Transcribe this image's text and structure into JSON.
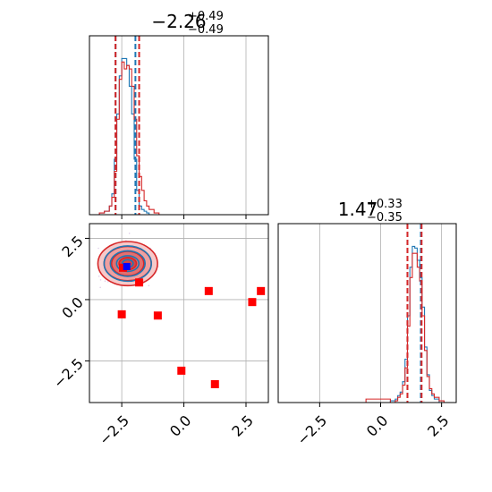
{
  "chart_data": {
    "type": "corner",
    "colors": {
      "series_a": "#1f77b4",
      "series_b": "#d62728",
      "points": "#ff0000",
      "truth": "#0000ff",
      "grid": "#b0b0b0"
    },
    "panels": {
      "hist_x": {
        "type": "histogram",
        "xlim": [
          -3.8,
          3.4
        ],
        "title": {
          "main": "−2.26",
          "sup": "+0.49",
          "sub": "−0.49"
        },
        "quantile_lines": {
          "series_a": [
            -2.75,
            -1.95
          ],
          "series_b": [
            -2.75,
            -1.8
          ]
        },
        "series_a": {
          "x": [
            -3.6,
            -3.4,
            -3.2,
            -3.0,
            -2.9,
            -2.8,
            -2.7,
            -2.6,
            -2.5,
            -2.4,
            -2.3,
            -2.2,
            -2.1,
            -2.0,
            -1.9,
            -1.8,
            -1.7,
            -1.6,
            -1.5,
            -1.4,
            -1.2,
            -1.0
          ],
          "y": [
            0.0,
            0.01,
            0.02,
            0.05,
            0.12,
            0.32,
            0.58,
            0.8,
            0.9,
            0.9,
            0.86,
            0.74,
            0.58,
            0.32,
            0.14,
            0.05,
            0.03,
            0.02,
            0.01,
            0.0,
            0.0,
            0.0
          ]
        },
        "series_b": {
          "x": [
            -3.6,
            -3.4,
            -3.2,
            -3.0,
            -2.9,
            -2.8,
            -2.7,
            -2.6,
            -2.5,
            -2.4,
            -2.3,
            -2.2,
            -2.1,
            -2.0,
            -1.9,
            -1.8,
            -1.7,
            -1.6,
            -1.5,
            -1.4,
            -1.2,
            -1.0,
            0.0,
            3.4
          ],
          "y": [
            0.0,
            0.01,
            0.02,
            0.05,
            0.1,
            0.25,
            0.55,
            0.78,
            0.88,
            0.84,
            0.86,
            0.84,
            0.74,
            0.55,
            0.34,
            0.22,
            0.14,
            0.08,
            0.05,
            0.03,
            0.01,
            0.0,
            0.0,
            0.0
          ]
        }
      },
      "hist_y": {
        "type": "histogram",
        "xlim": [
          -4.2,
          3.1
        ],
        "xticks": [
          -2.5,
          0.0,
          2.5
        ],
        "xtick_labels": [
          "−2.5",
          "0.0",
          "2.5"
        ],
        "title": {
          "main": "1.47",
          "sup": "+0.33",
          "sub": "−0.35"
        },
        "quantile_lines": {
          "series_a": [
            1.1,
            1.65
          ],
          "series_b": [
            1.1,
            1.68
          ]
        },
        "series_a": {
          "x": [
            0.2,
            0.4,
            0.6,
            0.7,
            0.8,
            0.9,
            1.0,
            1.1,
            1.2,
            1.3,
            1.4,
            1.5,
            1.6,
            1.7,
            1.8,
            1.9,
            2.0,
            2.1,
            2.2,
            2.4,
            2.6,
            3.0
          ],
          "y": [
            0.0,
            0.01,
            0.02,
            0.04,
            0.06,
            0.12,
            0.25,
            0.5,
            0.78,
            0.9,
            0.89,
            0.82,
            0.72,
            0.55,
            0.32,
            0.16,
            0.07,
            0.04,
            0.02,
            0.0,
            0.0,
            0.0
          ]
        },
        "series_b": {
          "x": [
            -0.8,
            -0.6,
            0.4,
            0.6,
            0.7,
            0.8,
            0.9,
            1.0,
            1.1,
            1.2,
            1.3,
            1.4,
            1.5,
            1.6,
            1.7,
            1.8,
            1.9,
            2.0,
            2.1,
            2.2,
            2.4,
            2.6,
            3.0
          ],
          "y": [
            0.0,
            0.02,
            0.0,
            0.01,
            0.03,
            0.05,
            0.1,
            0.2,
            0.44,
            0.72,
            0.86,
            0.86,
            0.78,
            0.7,
            0.5,
            0.3,
            0.15,
            0.08,
            0.05,
            0.03,
            0.01,
            0.0,
            0.0
          ]
        }
      },
      "scatter": {
        "type": "scatter",
        "xlim": [
          -3.8,
          3.4
        ],
        "ylim": [
          -4.2,
          3.1
        ],
        "xticks": [
          -2.5,
          0.0,
          2.5
        ],
        "xtick_labels": [
          "−2.5",
          "0.0",
          "2.5"
        ],
        "yticks": [
          -2.5,
          0.0,
          2.5
        ],
        "ytick_labels": [
          "−2.5",
          "0.0",
          "2.5"
        ],
        "density_center": [
          -2.26,
          1.47
        ],
        "contours_a": [
          {
            "rx": 0.22,
            "ry": 0.16
          },
          {
            "rx": 0.45,
            "ry": 0.32
          },
          {
            "rx": 0.7,
            "ry": 0.52
          },
          {
            "rx": 0.95,
            "ry": 0.72
          }
        ],
        "contours_b": [
          {
            "rx": 0.35,
            "ry": 0.25
          },
          {
            "rx": 0.65,
            "ry": 0.5
          },
          {
            "rx": 0.95,
            "ry": 0.7
          },
          {
            "rx": 1.2,
            "ry": 0.9
          }
        ],
        "points": [
          {
            "x": -2.45,
            "y": 1.3
          },
          {
            "x": -1.8,
            "y": 0.7
          },
          {
            "x": 1.0,
            "y": 0.35
          },
          {
            "x": 3.1,
            "y": 0.35
          },
          {
            "x": 2.75,
            "y": -0.1
          },
          {
            "x": -2.5,
            "y": -0.6
          },
          {
            "x": -1.05,
            "y": -0.65
          },
          {
            "x": -0.1,
            "y": -2.9
          },
          {
            "x": 1.25,
            "y": -3.45
          }
        ],
        "truth_point": {
          "x": -2.3,
          "y": 1.35
        }
      }
    }
  }
}
